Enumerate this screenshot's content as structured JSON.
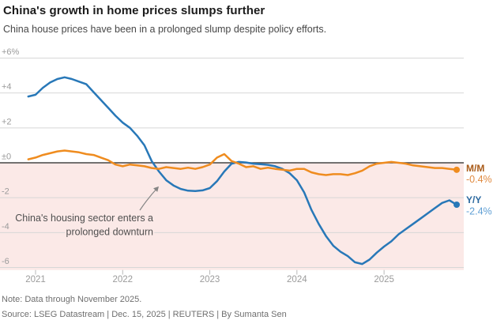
{
  "header": {
    "title": "China's growth in home prices slumps further",
    "subtitle": "China house prices have been in a prolonged slump despite policy efforts."
  },
  "chart_data": {
    "type": "line",
    "title": "China's growth in home prices slumps further",
    "frequency": "monthly",
    "x_start": "Dec 2020",
    "x_end": "Nov 2025",
    "x_tick_labels": [
      "2021",
      "2022",
      "2023",
      "2024",
      "2025"
    ],
    "y_tick_labels": [
      "+6%",
      "+4",
      "+2",
      "±0",
      "-2",
      "-4",
      "-6"
    ],
    "y_tick_values": [
      6,
      4,
      2,
      0,
      -2,
      -4,
      -6
    ],
    "ylim": [
      -6.2,
      6.8
    ],
    "grid": true,
    "legend_position": "right-end",
    "negative_band_color": "#fbe9e7",
    "series": [
      {
        "name": "Y/Y",
        "end_label": "Y/Y",
        "end_value_label": "-2.4%",
        "color": "#2878b8",
        "end_label_color": "#2a689f",
        "end_value_color": "#5f9fd4",
        "values": [
          3.8,
          3.9,
          4.3,
          4.6,
          4.8,
          4.9,
          4.8,
          4.65,
          4.5,
          4.05,
          3.6,
          3.15,
          2.7,
          2.3,
          2.0,
          1.55,
          1.0,
          0.1,
          -0.5,
          -1.0,
          -1.3,
          -1.5,
          -1.6,
          -1.62,
          -1.58,
          -1.45,
          -1.05,
          -0.5,
          -0.05,
          0.05,
          0.02,
          -0.05,
          -0.08,
          -0.12,
          -0.2,
          -0.35,
          -0.6,
          -1.0,
          -1.7,
          -2.7,
          -3.5,
          -4.2,
          -4.75,
          -5.1,
          -5.35,
          -5.7,
          -5.8,
          -5.55,
          -5.15,
          -4.8,
          -4.5,
          -4.1,
          -3.8,
          -3.5,
          -3.2,
          -2.9,
          -2.6,
          -2.3,
          -2.15,
          -2.4
        ]
      },
      {
        "name": "M/M",
        "end_label": "M/M",
        "end_value_label": "-0.4%",
        "color": "#ef8c1f",
        "end_label_color": "#a85a18",
        "end_value_color": "#e08a40",
        "values": [
          0.2,
          0.3,
          0.45,
          0.55,
          0.65,
          0.7,
          0.65,
          0.6,
          0.5,
          0.45,
          0.3,
          0.15,
          -0.1,
          -0.2,
          -0.1,
          -0.15,
          -0.2,
          -0.3,
          -0.35,
          -0.25,
          -0.3,
          -0.35,
          -0.28,
          -0.35,
          -0.25,
          -0.1,
          0.3,
          0.5,
          0.1,
          -0.05,
          -0.25,
          -0.2,
          -0.35,
          -0.28,
          -0.35,
          -0.4,
          -0.45,
          -0.35,
          -0.35,
          -0.55,
          -0.65,
          -0.7,
          -0.65,
          -0.65,
          -0.7,
          -0.6,
          -0.45,
          -0.2,
          -0.05,
          0.0,
          0.05,
          0.0,
          -0.05,
          -0.15,
          -0.2,
          -0.25,
          -0.3,
          -0.3,
          -0.35,
          -0.4
        ]
      }
    ],
    "annotation": {
      "line1": "China's housing sector enters a",
      "line2": "prolonged downturn"
    }
  },
  "footer": {
    "note": "Note: Data through November 2025.",
    "source": "Source: LSEG Datastream | Dec. 15, 2025 | REUTERS | By Sumanta Sen"
  },
  "colors": {
    "background": "#ffffff",
    "gridline": "#d7d7d7",
    "zero_line": "#454545",
    "axis_label": "#9b9b9b",
    "annotation_text": "#4f4f4f",
    "annotation_arrow": "#858585",
    "tick": "#b9b9b9"
  }
}
